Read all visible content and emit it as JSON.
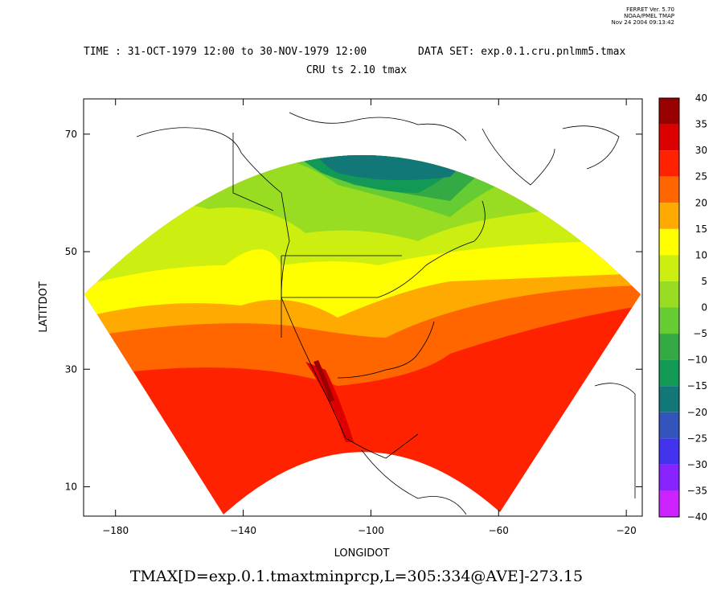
{
  "stamp": {
    "line1": "FERRET Ver. 5.70",
    "line2": "NOAA/PMEL TMAP",
    "line3": "Nov 24 2004 09:13:42"
  },
  "header": {
    "time": "TIME : 31-OCT-1979 12:00 to 30-NOV-1979 12:00",
    "dataset": "DATA SET: exp.0.1.cru.pnlmm5.tmax",
    "subtitle": "CRU ts 2.10 tmax"
  },
  "map": {
    "xlabel": "LONGIDOT",
    "ylabel": "LATITDOT",
    "x_ticks": [
      -180,
      -140,
      -100,
      -60,
      -20
    ],
    "y_ticks": [
      70,
      50,
      30,
      10
    ],
    "xlim": [
      -190,
      -15
    ],
    "ylim": [
      5,
      76
    ]
  },
  "colorbar": {
    "levels": [
      40,
      35,
      30,
      25,
      20,
      15,
      10,
      5,
      0,
      -5,
      -10,
      -15,
      -20,
      -25,
      -30,
      -35,
      -40
    ],
    "colors": [
      "#990000",
      "#dd0000",
      "#ff2200",
      "#ff6600",
      "#ffaa00",
      "#ffff00",
      "#ccee11",
      "#99dd22",
      "#66cc33",
      "#33aa44",
      "#119955",
      "#117777",
      "#3355bb",
      "#4433ee",
      "#8822ff",
      "#cc22ff"
    ]
  },
  "footer": "TMAX[D=exp.0.1.tmaxtminprcp,L=305:334@AVE]-273.15"
}
